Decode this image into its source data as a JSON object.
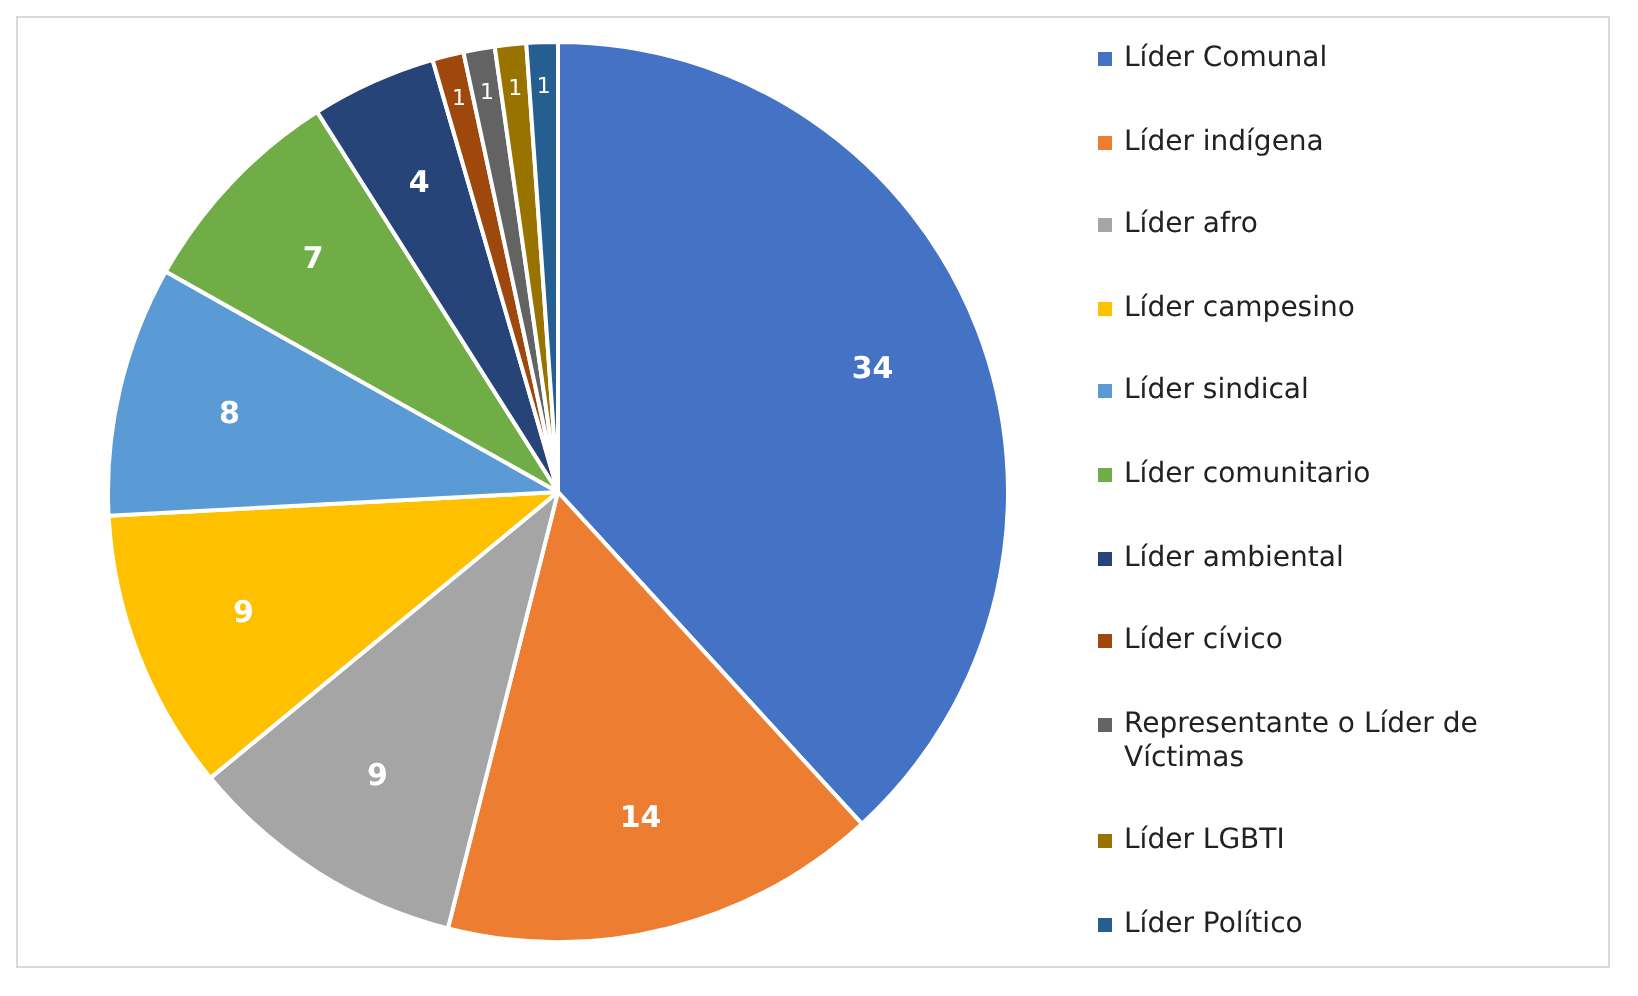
{
  "chart_data": {
    "type": "pie",
    "categories": [
      "Líder Comunal",
      "Líder indígena",
      "Líder afro",
      "Líder campesino",
      "Líder sindical",
      "Líder comunitario",
      "Líder ambiental",
      "Líder cívico",
      "Representante o Líder de Víctimas",
      "Líder LGBTI",
      "Líder Político"
    ],
    "values": [
      34,
      14,
      9,
      9,
      8,
      7,
      4,
      1,
      1,
      1,
      1
    ],
    "colors": [
      "#4472c4",
      "#ed7d31",
      "#a5a5a5",
      "#ffc000",
      "#5b9bd5",
      "#70ad47",
      "#264478",
      "#9e480e",
      "#636363",
      "#997300",
      "#255e91"
    ],
    "data_labels": true,
    "legend": "right"
  }
}
